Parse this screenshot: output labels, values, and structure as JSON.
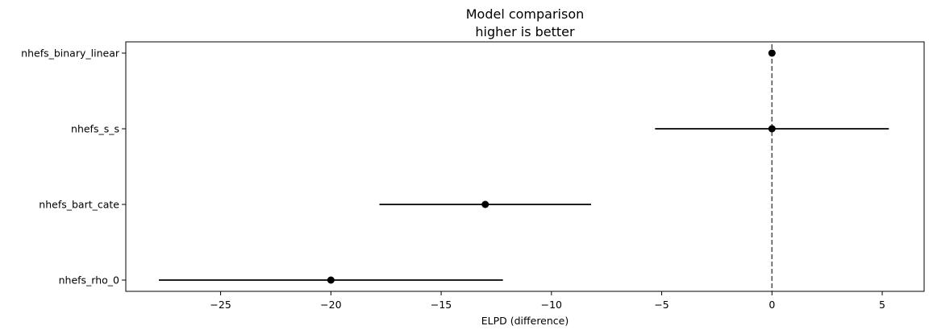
{
  "chart_data": {
    "type": "scatter",
    "title": "Model comparison",
    "subtitle": "higher is better",
    "xlabel": "ELPD (difference)",
    "ylabel": "",
    "xlim": [
      -29.3,
      6.9
    ],
    "xticks": [
      -25,
      -20,
      -15,
      -10,
      -5,
      0,
      5
    ],
    "xtick_labels": [
      "−25",
      "−20",
      "−15",
      "−10",
      "−5",
      "0",
      "5"
    ],
    "reference_line": {
      "x": 0,
      "style": "dashed",
      "color": "#555555"
    },
    "grid": false,
    "legend": "none",
    "models": [
      {
        "label": "nhefs_binary_linear",
        "elpd_diff": 0.0,
        "lower": 0.0,
        "upper": 0.0
      },
      {
        "label": "nhefs_s_s",
        "elpd_diff": 0.0,
        "lower": -5.3,
        "upper": 5.3
      },
      {
        "label": "nhefs_bart_cate",
        "elpd_diff": -13.0,
        "lower": -17.8,
        "upper": -8.2
      },
      {
        "label": "nhefs_rho_0",
        "elpd_diff": -20.0,
        "lower": -27.8,
        "upper": -12.2
      }
    ],
    "colors": {
      "points": "#000000",
      "errorbars": "#000000"
    }
  }
}
